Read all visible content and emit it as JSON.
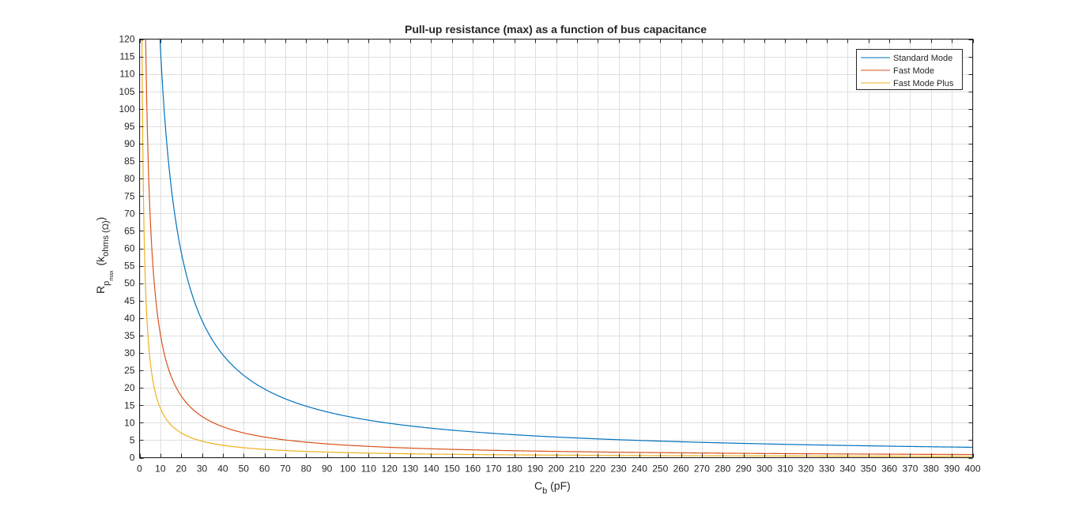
{
  "chart_data": {
    "type": "line",
    "title": "Pull-up resistance (max) as a function of bus capacitance",
    "xlabel": {
      "main": "C",
      "sub": "b",
      "rest": " (pF)"
    },
    "ylabel": {
      "main": "R",
      "sub": "p",
      "subsub": "max",
      "rest": "(k",
      "unit_sub": "ohms (Ω)",
      "close": ")"
    },
    "xlim": [
      0,
      400
    ],
    "ylim": [
      0,
      120
    ],
    "xticks": [
      0,
      10,
      20,
      30,
      40,
      50,
      60,
      70,
      80,
      90,
      100,
      110,
      120,
      130,
      140,
      150,
      160,
      170,
      180,
      190,
      200,
      210,
      220,
      230,
      240,
      250,
      260,
      270,
      280,
      290,
      300,
      310,
      320,
      330,
      340,
      350,
      360,
      370,
      380,
      390,
      400
    ],
    "yticks": [
      0,
      5,
      10,
      15,
      20,
      25,
      30,
      35,
      40,
      45,
      50,
      55,
      60,
      65,
      70,
      75,
      80,
      85,
      90,
      95,
      100,
      105,
      110,
      115,
      120
    ],
    "grid": true,
    "legend_position": "top-right",
    "series": [
      {
        "name": "Standard Mode",
        "color": "#0072BD",
        "k": 1180.0
      },
      {
        "name": "Fast Mode",
        "color": "#D95319",
        "k": 354.0
      },
      {
        "name": "Fast Mode Plus",
        "color": "#EDB120",
        "k": 141.6
      }
    ],
    "series_formula": "y = k / x",
    "sample_points": {
      "Standard Mode": [
        [
          10,
          118
        ],
        [
          20,
          59
        ],
        [
          30,
          39.3
        ],
        [
          40,
          29.5
        ],
        [
          50,
          23.6
        ],
        [
          100,
          11.8
        ],
        [
          200,
          5.9
        ],
        [
          300,
          3.93
        ],
        [
          400,
          2.95
        ]
      ],
      "Fast Mode": [
        [
          3,
          118
        ],
        [
          10,
          35.4
        ],
        [
          20,
          17.7
        ],
        [
          40,
          8.85
        ],
        [
          100,
          3.54
        ],
        [
          200,
          1.77
        ],
        [
          400,
          0.885
        ]
      ],
      "Fast Mode Plus": [
        [
          1.2,
          118
        ],
        [
          10,
          14.16
        ],
        [
          20,
          7.08
        ],
        [
          40,
          3.54
        ],
        [
          100,
          1.42
        ],
        [
          400,
          0.354
        ]
      ]
    }
  }
}
